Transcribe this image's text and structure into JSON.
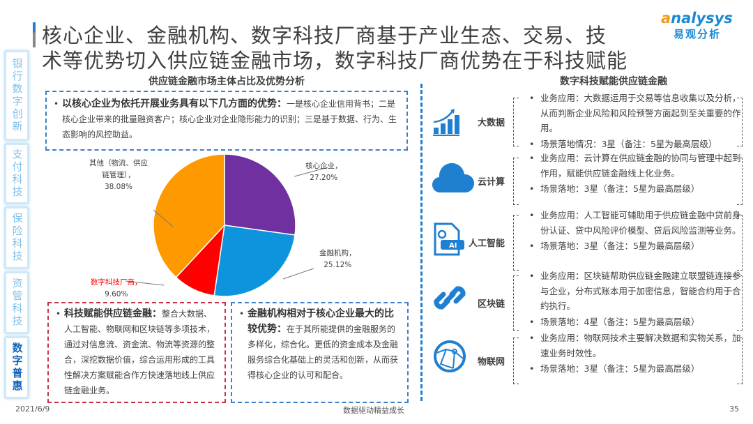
{
  "title": {
    "line1": "核心企业、金融机构、数字科技厂商基于产业生态、交易、技",
    "line2": "术等优势切入供应链金融市场，数字科技厂商优势在于科技赋能"
  },
  "logo": {
    "en": "analysys",
    "cn": "易观分析"
  },
  "sidebar": {
    "items": [
      {
        "label": "银行数字创新"
      },
      {
        "label": "支付科技"
      },
      {
        "label": "保险科技"
      },
      {
        "label": "资管科技"
      },
      {
        "label": "数字普惠",
        "active": true
      }
    ]
  },
  "left": {
    "subtitle": "供应链金融市场主体占比及优势分析",
    "box_top": {
      "bold": "以核心企业为依托开展业务具有以下几方面的优势：",
      "text": "一是核心企业信用背书；二是核心企业带来的批量融资客户；核心企业对企业隐形能力的识别；三是基于数据、行为、生态影响的风控助益。"
    },
    "box_red": {
      "bold": "科技赋能供应链金融：",
      "text": "整合大数据、人工智能、物联网和区块链等多项技术，通过对信息流、资金流、物流等资源的整合，深挖数据价值，综合运用形成的工具性解决方案赋能合作方快速落地线上供应链金融业务。"
    },
    "box_blue": {
      "bold": "金融机构相对于核心企业最大的比较优势：",
      "text": "在于其所能提供的金融服务的多样化，综合化。更低的资金成本及金融服务综合化基础上的灵活和创新，从而获得核心企业的认可和配合。"
    }
  },
  "chart_data": {
    "type": "pie",
    "categories": [
      "核心企业，",
      "金融机构，",
      "数字科技厂商，",
      "其他（物流、供应链管理），"
    ],
    "values": [
      27.2,
      25.12,
      9.6,
      38.08
    ],
    "labels": [
      "27.20%",
      "25.12%",
      "9.60%",
      "38.08%"
    ],
    "colors": [
      "#7030a0",
      "#0e94dc",
      "#ff0000",
      "#ff9900"
    ],
    "label_colors": [
      "#404040",
      "#404040",
      "#ff0000",
      "#404040"
    ]
  },
  "right": {
    "subtitle": "数字科技赋能供应链金融",
    "rows": [
      {
        "icon": "bar-chart-growth-icon",
        "label": "大数据",
        "app": "业务应用：大数据运用于交易等信息收集以及分析，从而判断企业风险和风险预警方面起到至关重要的作用。",
        "level": "场景落地情况：3星（备注：5星为最高层级）"
      },
      {
        "icon": "cloud-icon",
        "label": "云计算",
        "app": "业务应用：云计算在供应链金融的协同与管理中起到作用，赋能供应链金融线上化业务。",
        "level": "场景落地：3星（备注：5星为最高层级）"
      },
      {
        "icon": "ai-file-icon",
        "label": "人工智能",
        "icon_text": "AI",
        "app": "业务应用：人工智能可辅助用于供应链金融中贷前身份认证、贷中风险评价模型、贷后风险监测等业务。",
        "level": "场景落地：3星（备注：5星为最高层级）"
      },
      {
        "icon": "chain-link-icon",
        "label": "区块链",
        "app": "业务应用：区块链帮助供应链金融建立联盟链连接参与企业，分布式账本用于加密信息，智能合约用于合约执行。",
        "level": "场景落地：4星（备注：5星为最高层级）"
      },
      {
        "icon": "globe-network-icon",
        "label": "物联网",
        "app": "业务应用：物联网技术主要解决数据和实物关系，加速业务时效性。",
        "level": "场景落地：3星（备注：5星为最高层级）"
      }
    ]
  },
  "footer": {
    "date": "2021/6/9",
    "slogan": "数据驱动精益成长",
    "page": "35"
  }
}
